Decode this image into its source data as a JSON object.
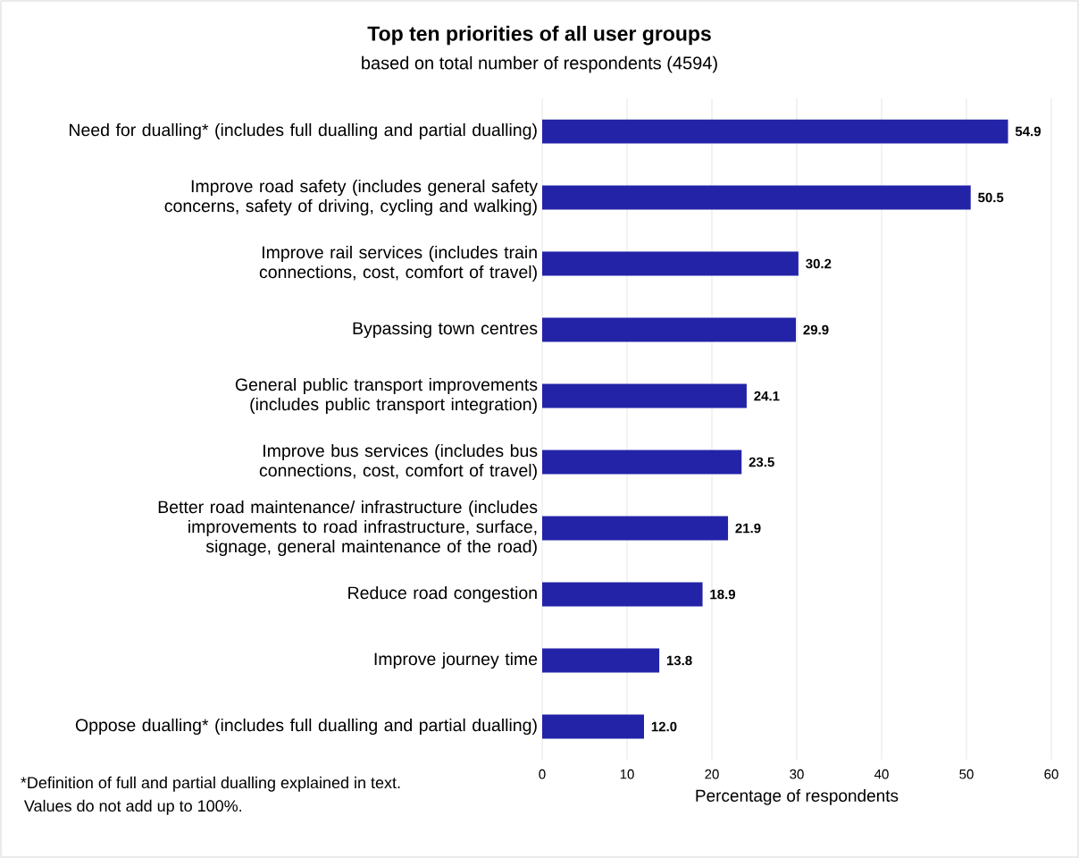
{
  "chart_data": {
    "type": "bar",
    "orientation": "horizontal",
    "title": "Top ten priorities of all user groups",
    "subtitle": "based on total number of respondents (4594)",
    "categories": [
      "Need for dualling* (includes full dualling and partial dualling)",
      "Improve road safety (includes general safety concerns, safety of driving, cycling and walking)",
      "Improve rail services (includes train connections, cost, comfort of travel)",
      "Bypassing town centres",
      "General public transport improvements (includes public transport integration)",
      "Improve bus services (includes bus connections, cost, comfort of travel)",
      "Better road maintenance/ infrastructure (includes improvements to road infrastructure, surface, signage, general maintenance of the road)",
      "Reduce road congestion",
      "Improve journey time",
      "Oppose dualling* (includes full dualling and partial dualling)"
    ],
    "values": [
      54.9,
      50.5,
      30.2,
      29.9,
      24.1,
      23.5,
      21.9,
      18.9,
      13.8,
      12.0
    ],
    "value_labels": [
      "54.9",
      "50.5",
      "30.2",
      "29.9",
      "24.1",
      "23.5",
      "21.9",
      "18.9",
      "13.8",
      "12.0"
    ],
    "color": "#2323a8",
    "grid": "x",
    "xlabel": "Percentage of respondents",
    "xlim": [
      0,
      60
    ],
    "xticks": [
      0,
      10,
      20,
      30,
      40,
      50,
      60
    ],
    "annotations": [
      "*Definition of full and partial dualling explained in text.",
      "Values do not add up to 100%."
    ]
  }
}
